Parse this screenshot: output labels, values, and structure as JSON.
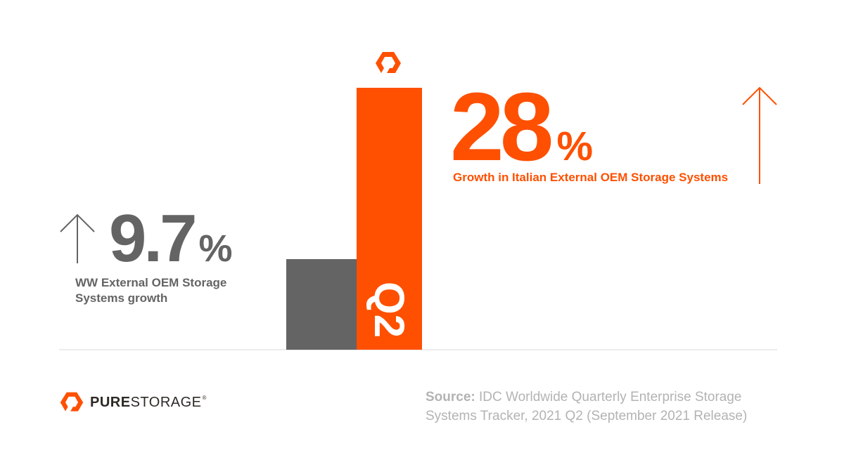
{
  "chart_data": {
    "type": "bar",
    "categories": [
      "WW External OEM Storage Systems",
      "Italian External OEM Storage Systems"
    ],
    "values": [
      9.7,
      28
    ],
    "unit": "%",
    "ylim": [
      0,
      28
    ],
    "colors": [
      "#646464",
      "#fe5000"
    ],
    "bar_label": "Q2",
    "grid": false
  },
  "stats": {
    "ww": {
      "value": "9.7",
      "unit": "%",
      "caption_line1": "WW External OEM Storage",
      "caption_line2": "Systems growth"
    },
    "italy": {
      "value": "28",
      "unit": "%",
      "caption": "Growth in Italian External OEM Storage Systems"
    }
  },
  "logo": {
    "pure": "PURE",
    "storage": "STORAGE",
    "reg": "®"
  },
  "source": {
    "label": "Source:",
    "line1": " IDC Worldwide Quarterly Enterprise Storage",
    "line2": "Systems Tracker, 2021 Q2 (September 2021 Release)"
  },
  "icons": {
    "arrow": "arrow-up-icon",
    "brand": "pure-storage-logo-icon"
  },
  "colors": {
    "orange": "#fe5000",
    "gray": "#646464",
    "source_gray": "#b3b3b3"
  }
}
